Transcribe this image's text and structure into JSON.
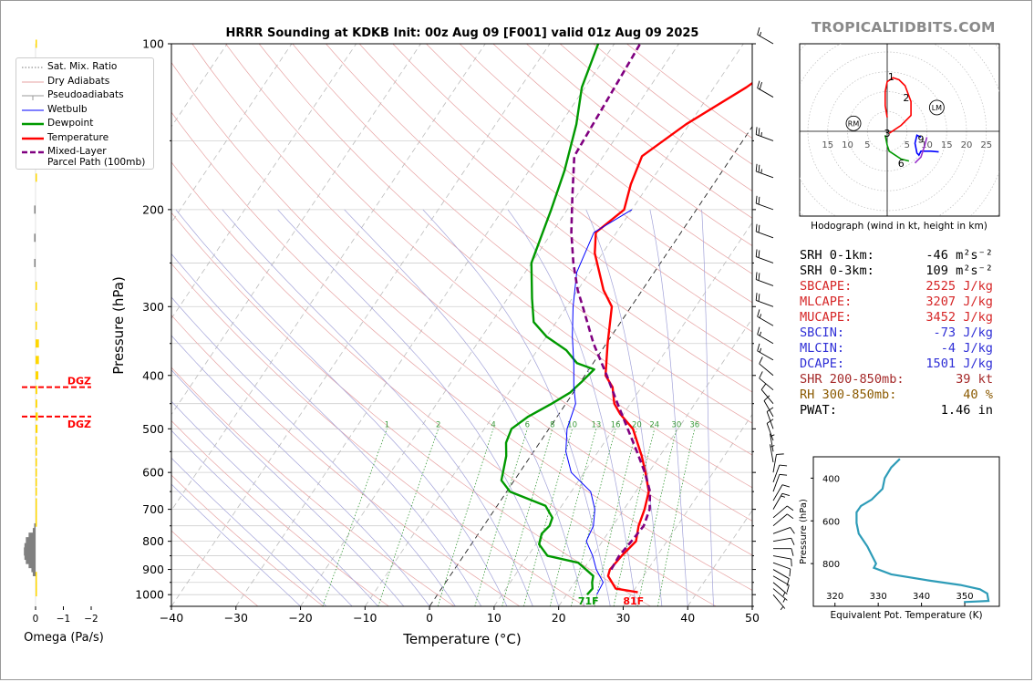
{
  "brand": "TROPICALTIDBITS.COM",
  "chart_data": [
    {
      "type": "skewt",
      "title": "HRRR Sounding at KDKB Init: 00z Aug 09 [F001] valid 01z Aug 09 2025",
      "xlabel": "Temperature (°C)",
      "ylabel": "Pressure (hPa)",
      "xlim": [
        -40,
        50
      ],
      "ylim": [
        1050,
        100
      ],
      "log_y": true,
      "x_ticks": [
        -40,
        -30,
        -20,
        -10,
        0,
        10,
        20,
        30,
        40,
        50
      ],
      "x_tick_labels": [
        "−40",
        "−30",
        "−20",
        "−10",
        "0",
        "10",
        "20",
        "30",
        "40",
        "50"
      ],
      "y_ticks": [
        100,
        200,
        300,
        400,
        500,
        600,
        700,
        800,
        900,
        1000
      ],
      "grid": true,
      "mixing_ratio_labels": [
        "1",
        "2",
        "4",
        "6",
        "8",
        "10",
        "13",
        "16",
        "20",
        "24",
        "30",
        "36"
      ],
      "series": [
        {
          "name": "Temperature",
          "color": "#ff0000",
          "x": [
            30.8,
            27.0,
            24.5,
            24.1,
            24.5,
            25.2,
            24.0,
            23.2,
            22.0,
            19.5,
            17.2,
            13.0,
            9.5,
            7.5,
            5.5,
            3.2,
            0.2,
            -3.0,
            -6.0,
            -8.5,
            -11.2,
            -13.2,
            -11.2,
            -12.8,
            -14.0,
            -10.5,
            -5.0,
            0.0
          ],
          "y": [
            990,
            975,
            925,
            900,
            850,
            800,
            750,
            700,
            650,
            600,
            560,
            500,
            470,
            450,
            420,
            400,
            350,
            300,
            280,
            260,
            240,
            220,
            200,
            180,
            160,
            140,
            120,
            100
          ]
        },
        {
          "name": "Dewpoint",
          "color": "#009900",
          "x": [
            23.2,
            23.4,
            22.7,
            22.2,
            18.5,
            13.0,
            10.5,
            9.8,
            10.2,
            9.8,
            7.5,
            0.5,
            -2.0,
            -3.8,
            -5.2,
            -5.8,
            -4.5,
            -2.2,
            -0.5,
            0.2,
            0.8,
            -2.5,
            -5.5,
            -10.0,
            -13.5,
            -16.2,
            -20.0,
            -22.5,
            -24.5,
            -27.5,
            -30.5,
            -32.5
          ],
          "y": [
            1000,
            975,
            950,
            925,
            875,
            850,
            810,
            775,
            750,
            725,
            690,
            650,
            620,
            560,
            530,
            500,
            475,
            450,
            430,
            410,
            390,
            380,
            360,
            340,
            320,
            290,
            250,
            200,
            170,
            140,
            120,
            100
          ]
        },
        {
          "name": "Wetbulb",
          "color": "#0000ff",
          "x": [
            24.7,
            24.4,
            22.0,
            20.0,
            17.5,
            17.0,
            15.5,
            13.0,
            8.0,
            5.0,
            2.8,
            1.5,
            -0.5,
            -3.0,
            -6.0,
            -9.0,
            -12.0,
            -13.5,
            -10.0
          ],
          "y": [
            1000,
            950,
            900,
            850,
            800,
            750,
            700,
            650,
            600,
            550,
            500,
            450,
            420,
            380,
            340,
            300,
            260,
            220,
            200
          ]
        },
        {
          "name": "Mixed-Layer Parcel Path (100mb)",
          "color": "#800080",
          "x": [
            24.3,
            24.1,
            24.5,
            24.8,
            24.0,
            22.2,
            19.4,
            16.0,
            12.2,
            8.0,
            3.4,
            -2.0,
            -7.5,
            -10.0,
            -13.5,
            -17.0,
            -20.5,
            -24.5,
            -26.0
          ],
          "y": [
            900,
            850,
            800,
            750,
            700,
            650,
            600,
            550,
            500,
            450,
            400,
            350,
            300,
            280,
            250,
            220,
            190,
            160,
            100
          ]
        }
      ],
      "annotations": [
        {
          "text": "71F",
          "color": "#009900",
          "x": 24.0,
          "y": 1010
        },
        {
          "text": "81F",
          "color": "#ff0000",
          "x": 31.0,
          "y": 1010
        }
      ],
      "legend": {
        "placement": "upper-left",
        "entries": [
          "Sat. Mix. Ratio",
          "Dry Adiabats",
          "Pseudoadiabats",
          "Wetbulb",
          "Dewpoint",
          "Temperature",
          "Mixed-Layer\nParcel Path (100mb)"
        ],
        "entry_lines": [
          [
            "Sat. Mix. Ratio"
          ],
          [
            "Dry Adiabats"
          ],
          [
            "Pseudoadiabats"
          ],
          [
            "Wetbulb"
          ],
          [
            "Dewpoint"
          ],
          [
            "Temperature"
          ],
          [
            "Mixed-Layer",
            "Parcel Path (100mb)"
          ]
        ]
      }
    },
    {
      "type": "bar",
      "xlabel": "Omega (Pa/s)",
      "x_ticks": [
        0,
        -1,
        -2
      ],
      "x_tick_labels": [
        "0",
        "−1",
        "−2"
      ],
      "orientation": "horizontal",
      "dgz_label": "DGZ",
      "dgz_pressures": [
        420,
        475
      ],
      "levels_hpa": [
        990,
        965,
        945,
        925,
        910,
        895,
        880,
        865,
        850,
        835,
        820,
        800,
        785,
        770,
        755,
        740,
        725,
        710,
        695,
        680,
        650,
        625,
        600,
        575,
        550,
        525,
        500,
        475,
        450,
        425,
        400,
        375,
        350,
        325,
        300,
        275,
        250,
        225,
        200,
        175,
        150,
        125,
        100
      ],
      "values": [
        -0.05,
        -0.05,
        -0.03,
        0.0,
        0.1,
        0.15,
        0.25,
        0.35,
        0.4,
        0.42,
        0.4,
        0.35,
        0.25,
        0.1,
        0.05,
        0.0,
        0.0,
        0.0,
        0.0,
        0.0,
        -0.02,
        -0.03,
        -0.03,
        -0.05,
        -0.05,
        -0.05,
        -0.07,
        -0.08,
        -0.06,
        -0.06,
        -0.1,
        -0.12,
        -0.12,
        -0.05,
        -0.03,
        0.0,
        0.02,
        0.05,
        0.02,
        -0.02,
        -0.03,
        0.0,
        -0.02
      ],
      "positive_color": "#808080",
      "negative_color": "#ffd700"
    },
    {
      "type": "hodograph",
      "caption": "Hodograph (wind in kt, height in km)",
      "ring_labels": [
        "15",
        "10",
        "5",
        "5",
        "10",
        "15",
        "20",
        "25"
      ],
      "markers": {
        "RM": "RM",
        "LM": "LM"
      },
      "segments": [
        {
          "color": "#009900",
          "u": [
            -0.5,
            0.0,
            0.5,
            3.5,
            5.5
          ],
          "v": [
            -1.0,
            -3.5,
            -5.0,
            -7.0,
            -7.5
          ]
        },
        {
          "color": "#ff0000",
          "u": [
            0.5,
            3.5,
            6.0,
            6.0,
            4.5,
            3.0,
            1.5,
            0.0,
            -0.5,
            -0.5,
            0.0
          ],
          "v": [
            -0.5,
            1.5,
            4.0,
            7.5,
            11.5,
            13.0,
            13.5,
            12.5,
            10.0,
            6.5,
            3.5
          ]
        },
        {
          "color": "#0000ff",
          "u": [
            8.5,
            7.5,
            7.0,
            7.5,
            8.0,
            8.5,
            11.0,
            13.0
          ],
          "v": [
            -1.5,
            -1.0,
            -3.0,
            -5.5,
            -6.0,
            -5.0,
            -5.0,
            -5.2
          ]
        },
        {
          "color": "#9933cc",
          "u": [
            10.0,
            9.5,
            8.5,
            7.5,
            7.0
          ],
          "v": [
            -1.5,
            -3.5,
            -6.5,
            -7.5,
            -8.0
          ]
        }
      ],
      "height_labels": [
        {
          "text": "1",
          "u": 1.0,
          "v": 13.8
        },
        {
          "text": "2",
          "u": 4.8,
          "v": 8.5
        },
        {
          "text": "3",
          "u": 0.0,
          "v": -0.5
        },
        {
          "text": "9",
          "u": 8.5,
          "v": -2.0
        },
        {
          "text": "6",
          "u": 3.5,
          "v": -8.0
        }
      ],
      "rm": {
        "u": -8.5,
        "v": 2.0
      },
      "lm": {
        "u": 12.5,
        "v": 6.0
      }
    },
    {
      "type": "line",
      "xlabel": "Equivalent Pot. Temperature (K)",
      "ylabel": "Pressure (hPa)",
      "xlim": [
        315,
        358
      ],
      "ylim": [
        1000,
        300
      ],
      "x_ticks": [
        320,
        330,
        340,
        350
      ],
      "x_tick_labels": [
        "320",
        "330",
        "340",
        "350"
      ],
      "y_ticks": [
        400,
        600,
        800
      ],
      "y_tick_labels": [
        "400",
        "600",
        "800"
      ],
      "series": [
        {
          "color": "#2e9cb8",
          "x": [
            349.8,
            355.5,
            355.2,
            353.5,
            349.0,
            342.0,
            333.0,
            329.0,
            329.5,
            328.5,
            327.5,
            325.5,
            325.0,
            325.0,
            326.0,
            328.5,
            331.0,
            331.5,
            333.0,
            335.0
          ],
          "y": [
            980,
            975,
            940,
            920,
            900,
            880,
            850,
            820,
            800,
            760,
            720,
            660,
            610,
            560,
            530,
            500,
            450,
            400,
            350,
            310
          ]
        }
      ]
    }
  ],
  "indices": [
    {
      "label": "SRH 0-1km:",
      "value": "-46",
      "unit": "m²s⁻²",
      "color": "#000000"
    },
    {
      "label": "SRH 0-3km:",
      "value": "109",
      "unit": "m²s⁻²",
      "color": "#000000"
    },
    {
      "label": "SBCAPE:",
      "value": "2525 J/kg",
      "unit": "",
      "color": "#d62728"
    },
    {
      "label": "MLCAPE:",
      "value": "3207 J/kg",
      "unit": "",
      "color": "#d62728"
    },
    {
      "label": "MUCAPE:",
      "value": "3452 J/kg",
      "unit": "",
      "color": "#d62728"
    },
    {
      "label": "SBCIN:",
      "value": "-73 J/kg",
      "unit": "",
      "color": "#2f2fd6"
    },
    {
      "label": "MLCIN:",
      "value": "-4 J/kg",
      "unit": "",
      "color": "#2f2fd6"
    },
    {
      "label": "DCAPE:",
      "value": "1501 J/kg",
      "unit": "",
      "color": "#2f2fd6"
    },
    {
      "label": "SHR 200-850mb:",
      "value": "39 kt",
      "unit": "",
      "color": "#a52a2a"
    },
    {
      "label": "RH 300-850mb:",
      "value": "40 %",
      "unit": "",
      "color": "#8b5a00"
    },
    {
      "label": "PWAT:",
      "value": "1.46 in",
      "unit": "",
      "color": "#000000"
    }
  ],
  "wind_barbs": {
    "levels_hpa": [
      100,
      125,
      150,
      175,
      200,
      225,
      250,
      275,
      300,
      325,
      350,
      375,
      400,
      425,
      450,
      475,
      500,
      525,
      550,
      575,
      600,
      625,
      650,
      675,
      700,
      725,
      750,
      775,
      800,
      825,
      850,
      875,
      900,
      925,
      950,
      975,
      1000
    ],
    "speed_kt": [
      15,
      20,
      25,
      25,
      20,
      20,
      20,
      20,
      20,
      15,
      15,
      15,
      10,
      10,
      10,
      10,
      10,
      10,
      5,
      5,
      10,
      10,
      10,
      10,
      15,
      10,
      10,
      10,
      10,
      10,
      10,
      10,
      10,
      10,
      5,
      5,
      5
    ],
    "direction_deg": [
      300,
      300,
      290,
      290,
      290,
      290,
      290,
      290,
      290,
      300,
      300,
      300,
      310,
      310,
      320,
      330,
      340,
      340,
      350,
      350,
      10,
      20,
      20,
      30,
      30,
      50,
      50,
      70,
      80,
      90,
      100,
      110,
      120,
      120,
      130,
      130,
      140
    ]
  }
}
